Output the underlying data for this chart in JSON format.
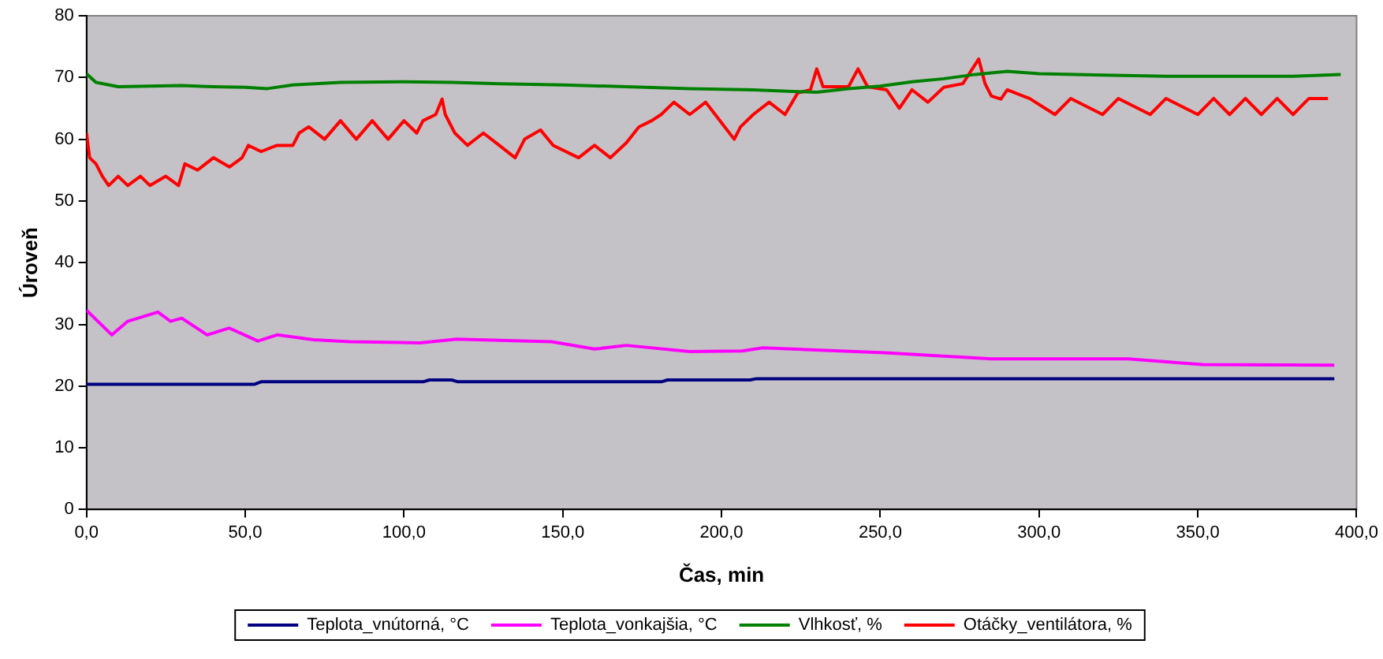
{
  "chart_data": {
    "type": "line",
    "xlabel": "Čas, min",
    "ylabel": "Úroveň",
    "xlim": [
      0,
      400
    ],
    "ylim": [
      0,
      80
    ],
    "xticks": [
      {
        "value": 0,
        "label": "0,0"
      },
      {
        "value": 50,
        "label": "50,0"
      },
      {
        "value": 100,
        "label": "100,0"
      },
      {
        "value": 150,
        "label": "150,0"
      },
      {
        "value": 200,
        "label": "200,0"
      },
      {
        "value": 250,
        "label": "250,0"
      },
      {
        "value": 300,
        "label": "300,0"
      },
      {
        "value": 350,
        "label": "350,0"
      },
      {
        "value": 400,
        "label": "400,0"
      }
    ],
    "yticks": [
      0,
      10,
      20,
      30,
      40,
      50,
      60,
      70,
      80
    ],
    "grid": false,
    "legend": "bottom",
    "marker": "none",
    "line_style": "solid",
    "series": [
      {
        "name": "Teplota_vnútorná, °C",
        "color": "#000080",
        "x": [
          0,
          53,
          55,
          106,
          108,
          115,
          117,
          181,
          183,
          209,
          211,
          393
        ],
        "values": [
          20.3,
          20.3,
          20.7,
          20.7,
          21.0,
          21.0,
          20.7,
          20.7,
          21.0,
          21.0,
          21.2,
          21.2
        ]
      },
      {
        "name": "Teplota_vonkajšia, °C",
        "color": "#ff00ff",
        "x": [
          0,
          8,
          13,
          22.5,
          26.5,
          30,
          38,
          45,
          54,
          60,
          71.5,
          83,
          105,
          116.5,
          146.5,
          160,
          170,
          190,
          206.5,
          213,
          251.5,
          285,
          328,
          351.5,
          393
        ],
        "values": [
          32.3,
          28.3,
          30.5,
          32,
          30.5,
          31,
          28.3,
          29.4,
          27.3,
          28.3,
          27.5,
          27.2,
          27,
          27.6,
          27.2,
          26,
          26.6,
          25.6,
          25.7,
          26.2,
          25.4,
          24.4,
          24.4,
          23.5,
          23.4
        ]
      },
      {
        "name": "Vlhkosť, %",
        "color": "#008000",
        "x": [
          0,
          3,
          10,
          20,
          30,
          40,
          50,
          57,
          65,
          80,
          100,
          115,
          130,
          150,
          170,
          190,
          210,
          230,
          240,
          250,
          260,
          270,
          280,
          290,
          300,
          320,
          340,
          360,
          380,
          395
        ],
        "values": [
          70.6,
          69.2,
          68.5,
          68.6,
          68.7,
          68.5,
          68.4,
          68.2,
          68.8,
          69.2,
          69.3,
          69.2,
          69,
          68.8,
          68.5,
          68.2,
          68,
          67.6,
          68.2,
          68.6,
          69.3,
          69.8,
          70.5,
          71,
          70.6,
          70.4,
          70.2,
          70.2,
          70.2,
          70.5
        ]
      },
      {
        "name": "Otáčky_ventilátora, %",
        "color": "#ff0000",
        "x": [
          0,
          1,
          3,
          5,
          7,
          10,
          13,
          17,
          20,
          25,
          29,
          31,
          35,
          40,
          45,
          49,
          51,
          55,
          60,
          65,
          67,
          70,
          75,
          80,
          85,
          90,
          95,
          100,
          104,
          106,
          110,
          112,
          113,
          116,
          120,
          125,
          130,
          135,
          138,
          143,
          147,
          155,
          160,
          165,
          170,
          174,
          178,
          181,
          185,
          190,
          195,
          198,
          201,
          204,
          206,
          210,
          215,
          220,
          224,
          228,
          230,
          232,
          240,
          243,
          246,
          252,
          256,
          260,
          265,
          270,
          276,
          279,
          281,
          283,
          285,
          288,
          290,
          295,
          297,
          305,
          310,
          320,
          325,
          335,
          340,
          350,
          355,
          360,
          365,
          370,
          375,
          380,
          385,
          391
        ],
        "values": [
          61,
          57,
          56,
          54,
          52.5,
          54,
          52.5,
          54,
          52.5,
          54,
          52.5,
          56,
          55,
          57,
          55.5,
          57,
          59,
          58,
          59,
          59,
          61,
          62,
          60,
          63,
          60,
          63,
          60,
          63,
          61,
          63,
          64,
          66.5,
          64,
          61,
          59,
          61,
          59,
          57,
          60,
          61.5,
          59,
          57,
          59,
          57,
          59.4,
          62,
          63,
          64,
          66,
          64,
          66,
          64,
          62,
          60,
          62,
          64,
          66,
          64,
          67.5,
          68,
          71.4,
          68.5,
          68.5,
          71.4,
          68.5,
          68,
          65,
          68,
          66,
          68.4,
          69,
          71.4,
          73,
          69,
          67,
          66.5,
          68,
          67,
          66.6,
          64,
          66.6,
          64,
          66.6,
          64,
          66.6,
          64,
          66.6,
          64,
          66.6,
          64,
          66.6,
          64,
          66.6,
          66.6
        ]
      }
    ]
  }
}
